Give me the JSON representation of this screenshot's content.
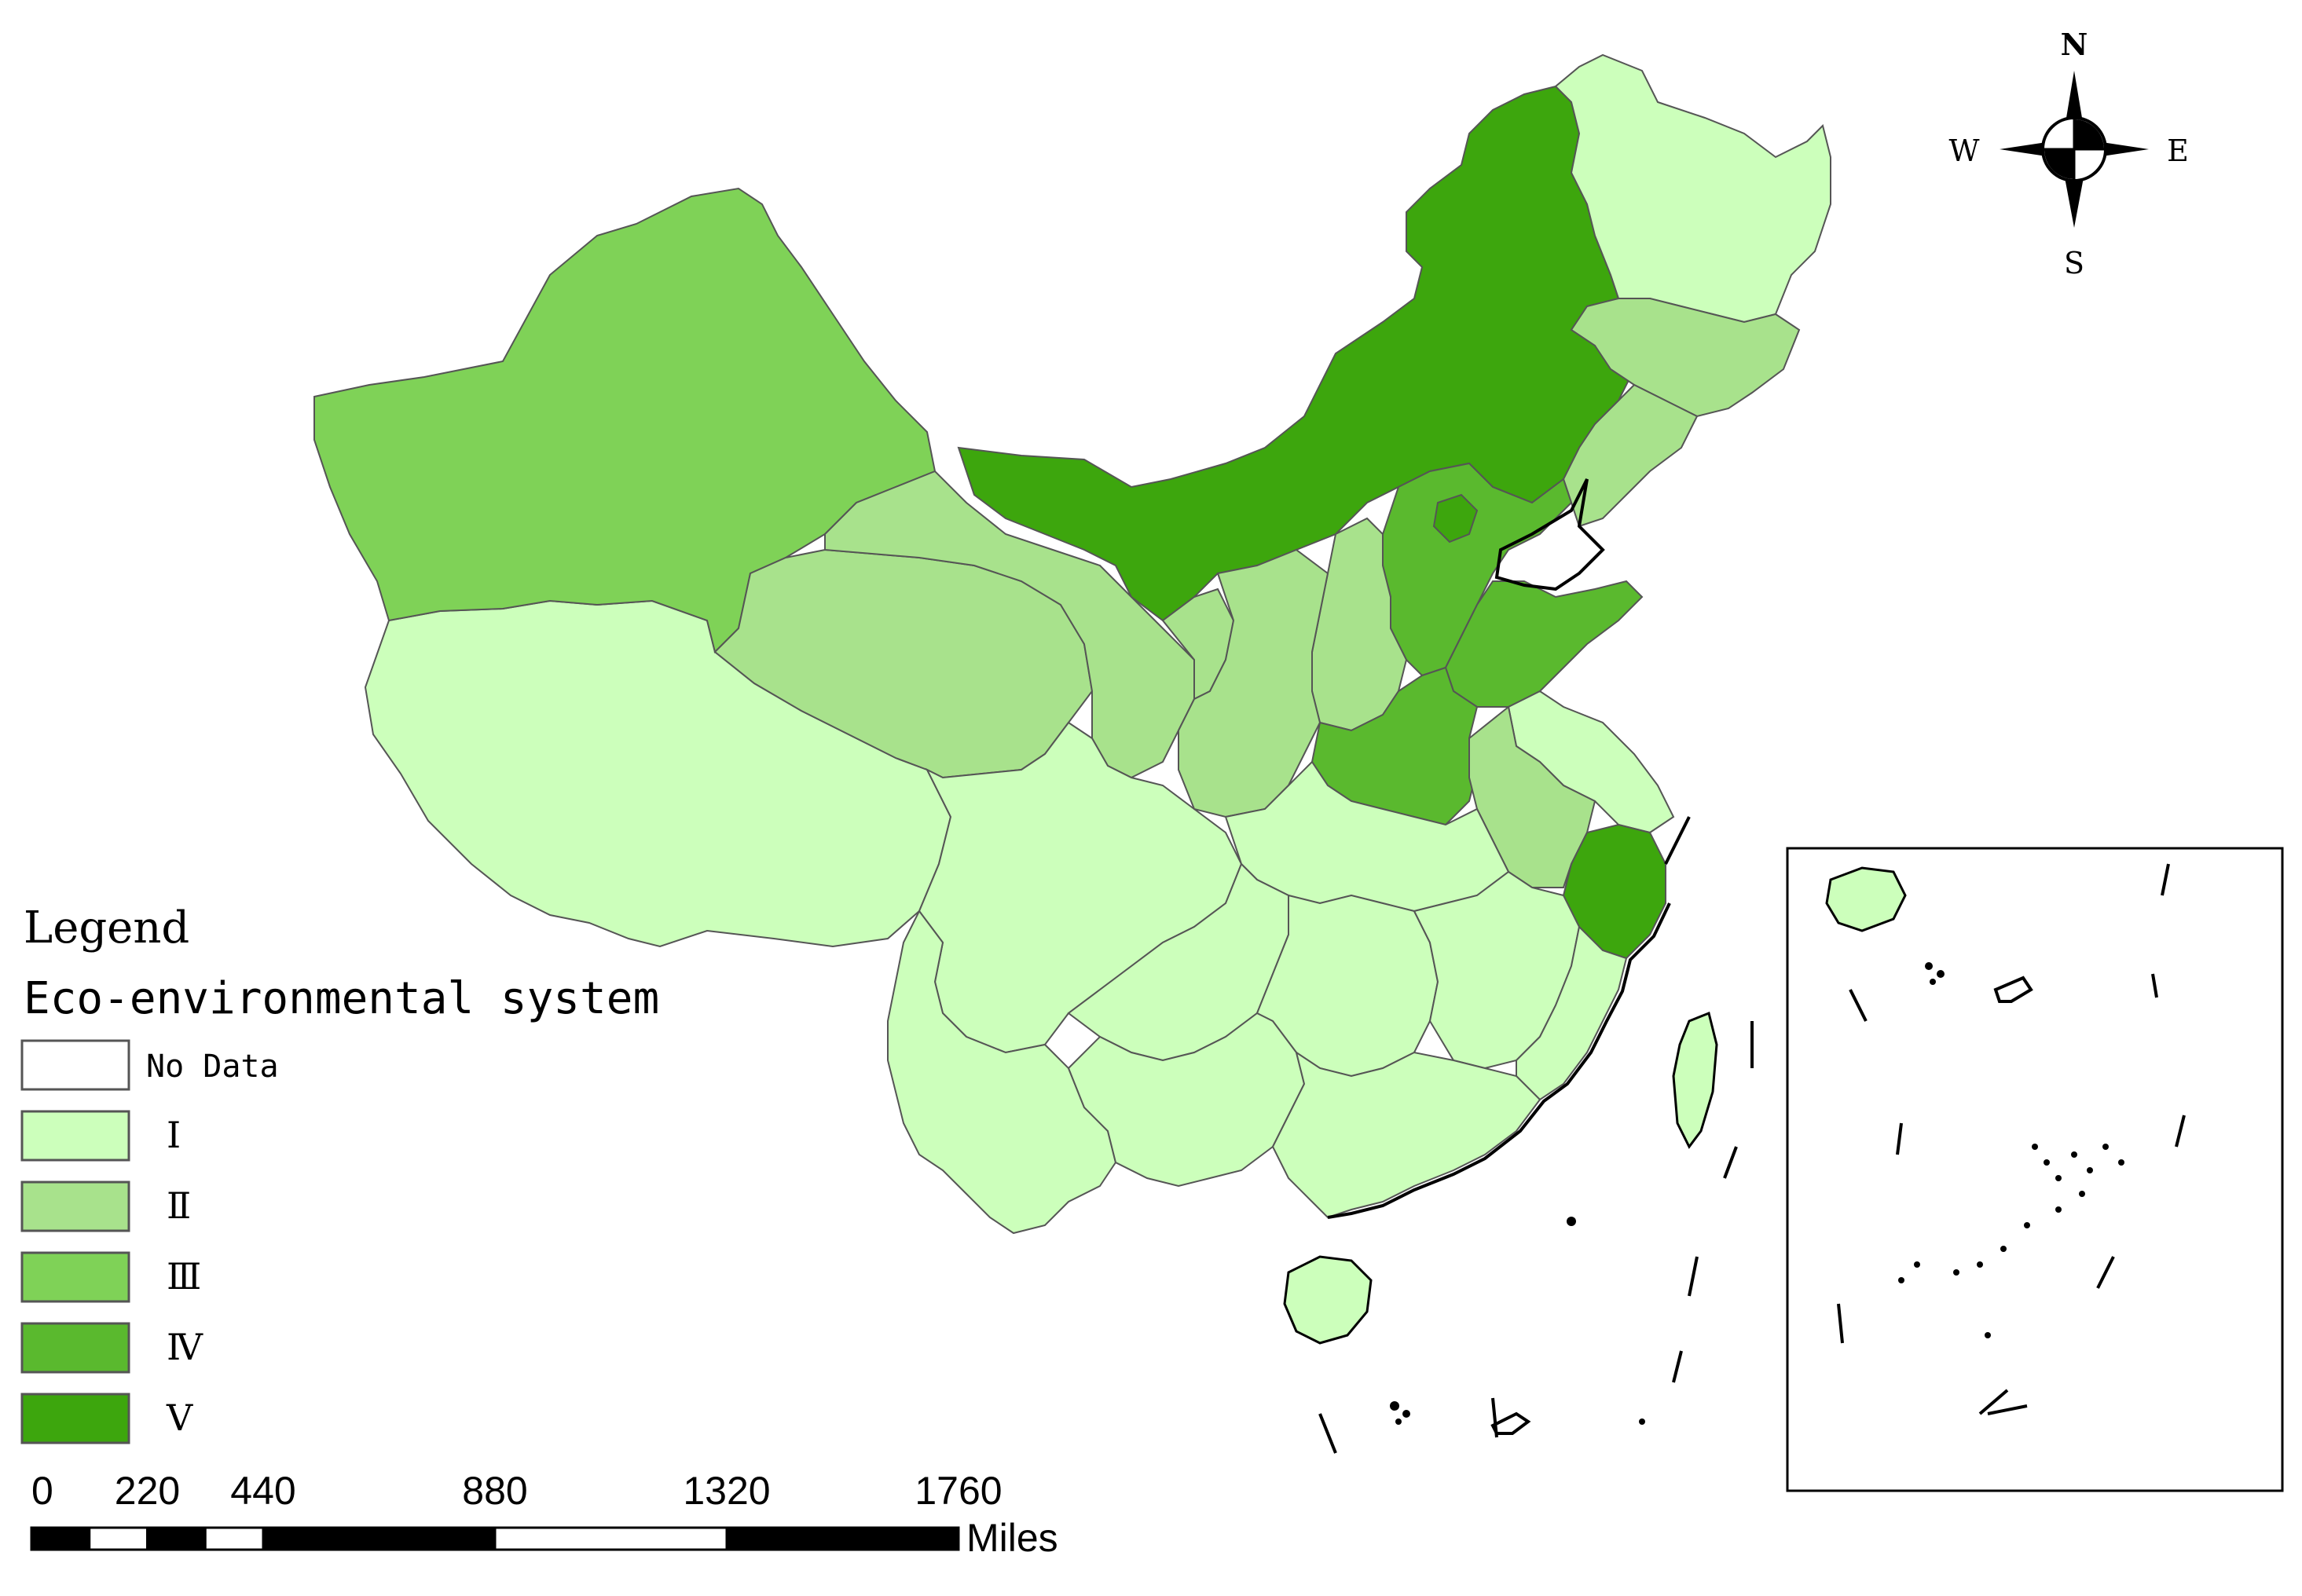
{
  "legend": {
    "title": "Legend",
    "subtitle": "Eco-environmental system",
    "items": [
      {
        "label": "No Data",
        "color": "#ffffff"
      },
      {
        "label": "Ⅰ",
        "color": "#ccffbb"
      },
      {
        "label": "Ⅱ",
        "color": "#a8e28c"
      },
      {
        "label": "Ⅲ",
        "color": "#7fd257"
      },
      {
        "label": "Ⅳ",
        "color": "#5ab92e"
      },
      {
        "label": "Ⅴ",
        "color": "#3da60d"
      }
    ]
  },
  "compass": {
    "n": "N",
    "s": "S",
    "e": "E",
    "w": "W"
  },
  "scale_bar": {
    "ticks": [
      "0",
      "220",
      "440",
      "880",
      "1320",
      "1760"
    ],
    "unit": "Miles"
  },
  "icons": {
    "compass": "north-arrow-compass-icon"
  }
}
